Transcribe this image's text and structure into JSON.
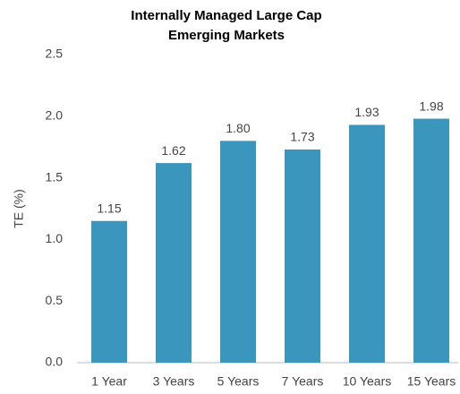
{
  "chart_data": {
    "type": "bar",
    "title": [
      "Internally Managed Large Cap",
      "Emerging Markets"
    ],
    "ylabel": "TE (%)",
    "categories": [
      "1 Year",
      "3 Years",
      "5 Years",
      "7 Years",
      "10 Years",
      "15 Years"
    ],
    "values": [
      1.15,
      1.62,
      1.8,
      1.73,
      1.93,
      1.98
    ],
    "value_labels": [
      "1.15",
      "1.62",
      "1.80",
      "1.73",
      "1.93",
      "1.98"
    ],
    "color": "#3a96bd",
    "ylim": [
      0,
      2.5
    ],
    "yticks": [
      {
        "value": 0,
        "label": "0.0"
      },
      0.5,
      {
        "value": 1,
        "label": "1.0"
      },
      1.5,
      {
        "value": 2,
        "label": "2.0"
      },
      2.5
    ],
    "grid": false
  }
}
